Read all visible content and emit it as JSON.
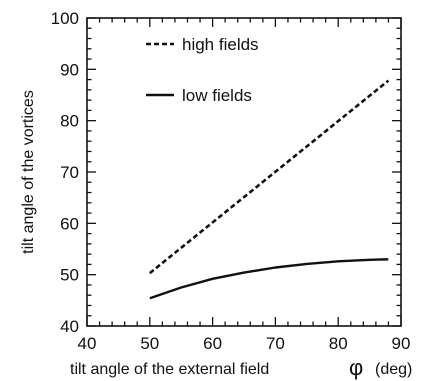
{
  "chart_data": {
    "type": "line",
    "xlabel": "tilt angle of the external field",
    "xlabel_symbol": "φ",
    "xlabel_unit": "(deg)",
    "ylabel": "tilt angle of the vortices",
    "xlim": [
      40,
      90
    ],
    "ylim": [
      40,
      100
    ],
    "x_ticks": [
      40,
      50,
      60,
      70,
      80,
      90
    ],
    "y_ticks": [
      40,
      50,
      60,
      70,
      80,
      90,
      100
    ],
    "x_ticks_text": [
      "40",
      "50",
      "60",
      "70",
      "80",
      "90"
    ],
    "y_ticks_text": [
      "40",
      "50",
      "60",
      "70",
      "80",
      "90",
      "100"
    ],
    "grid": false,
    "legend_position": "top-left",
    "series": [
      {
        "name": "high fields",
        "style": "dashed",
        "color": "#111111",
        "x": [
          50,
          88
        ],
        "y": [
          50.3,
          87.8
        ]
      },
      {
        "name": "low fields",
        "style": "solid",
        "color": "#111111",
        "x": [
          50,
          55,
          60,
          65,
          70,
          75,
          80,
          85,
          88
        ],
        "y": [
          45.4,
          47.5,
          49.2,
          50.4,
          51.4,
          52.1,
          52.6,
          52.9,
          53.0
        ]
      }
    ]
  }
}
